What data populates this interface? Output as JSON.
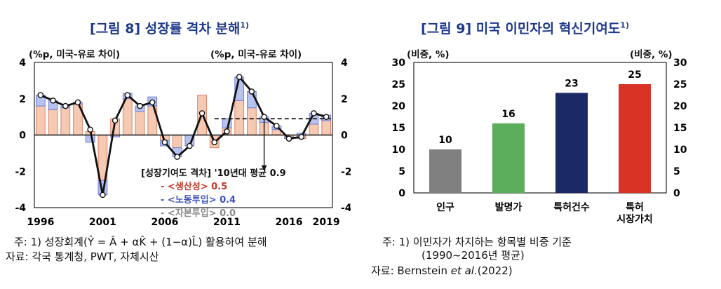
{
  "left": {
    "title": "[그림 8] 성장률 격차 분해",
    "title_sup": "1)",
    "unit_left": "(%p, 미국-유로 차이)",
    "unit_right": "(%p, 미국-유로 차이)",
    "note1": "주: 1) 성장회계(Ŷ = Â + αK̂ + (1−α)L̂) 활용하여 분해",
    "source": "자료: 각국 통계청, PWT, 자체시산",
    "annotation": {
      "header": "[성장기여도 격차] '10년대 평균 0.9",
      "items": [
        {
          "label": "- <생산성> 0.5",
          "color": "#c0392b"
        },
        {
          "label": "- <노동투입> 0.4",
          "color": "#3a4fbf"
        },
        {
          "label": "- <자본투입> 0.0",
          "color": "#8a8a8a"
        }
      ]
    }
  },
  "right": {
    "title": "[그림 9] 미국 이민자의 혁신기여도",
    "title_sup": "1)",
    "unit_left": "(비중, %)",
    "unit_right": "(비중, %)",
    "note1": "주: 1) 이민자가 차지하는 항목별 비중 기준",
    "note2": "(1990~2016년 평균)",
    "source_prefix": "자료: Bernstein ",
    "source_italic": "et al.",
    "source_suffix": "(2022)"
  },
  "chart_data": [
    {
      "type": "bar",
      "stacked": true,
      "x_tick_labels": [
        "1996",
        "2001",
        "2006",
        "2011",
        "2016",
        "2019"
      ],
      "years": [
        1996,
        1997,
        1998,
        1999,
        2000,
        2001,
        2002,
        2003,
        2004,
        2005,
        2006,
        2007,
        2008,
        2009,
        2010,
        2011,
        2012,
        2013,
        2014,
        2015,
        2016,
        2017,
        2018,
        2019
      ],
      "series": [
        {
          "name": "생산성",
          "color": "#f6c9b3",
          "values": [
            1.6,
            1.4,
            1.5,
            1.7,
            0.2,
            -2.5,
            0.9,
            2.0,
            1.3,
            1.6,
            -0.3,
            -0.7,
            0.0,
            2.2,
            -0.7,
            0.4,
            1.9,
            1.5,
            0.7,
            0.3,
            -0.1,
            -0.2,
            0.6,
            0.8
          ]
        },
        {
          "name": "노동투입",
          "color": "#b8c2ee",
          "values": [
            0.6,
            0.5,
            0.1,
            0.1,
            -0.4,
            -0.8,
            -0.1,
            0.3,
            0.3,
            0.5,
            -0.3,
            -0.5,
            -0.6,
            0.0,
            0.0,
            0.5,
            1.3,
            0.9,
            0.3,
            0.2,
            -0.1,
            0.1,
            0.6,
            0.3
          ]
        },
        {
          "name": "자본투입",
          "color": "#d9d9d9",
          "values": [
            0.0,
            0.0,
            0.0,
            0.0,
            0.0,
            0.0,
            0.0,
            0.0,
            0.0,
            0.0,
            0.0,
            0.0,
            0.0,
            0.0,
            0.0,
            0.0,
            0.0,
            0.0,
            0.0,
            0.0,
            0.0,
            0.0,
            0.0,
            0.0
          ]
        }
      ],
      "line": {
        "values": [
          2.2,
          1.9,
          1.6,
          1.8,
          0.3,
          -3.3,
          0.8,
          2.2,
          1.6,
          1.8,
          -0.4,
          -1.2,
          -0.6,
          1.2,
          -0.4,
          0.2,
          3.2,
          2.4,
          1.0,
          0.5,
          -0.2,
          -0.1,
          1.2,
          1.0
        ],
        "color": "#111111"
      },
      "avg_line": {
        "value": 0.9,
        "x_start": 2010,
        "x_end": 2019
      },
      "ylim": [
        -4,
        4
      ],
      "yticks": [
        -4,
        -2,
        0,
        2,
        4
      ]
    },
    {
      "type": "bar",
      "categories": [
        "인구",
        "발명가",
        "특허건수",
        "특허\n시장가치"
      ],
      "values": [
        10,
        16,
        23,
        25
      ],
      "colors": [
        "#808080",
        "#5cad5c",
        "#1b2a66",
        "#d93326"
      ],
      "ylim": [
        0,
        30
      ],
      "yticks": [
        0,
        5,
        10,
        15,
        20,
        25,
        30
      ]
    }
  ]
}
